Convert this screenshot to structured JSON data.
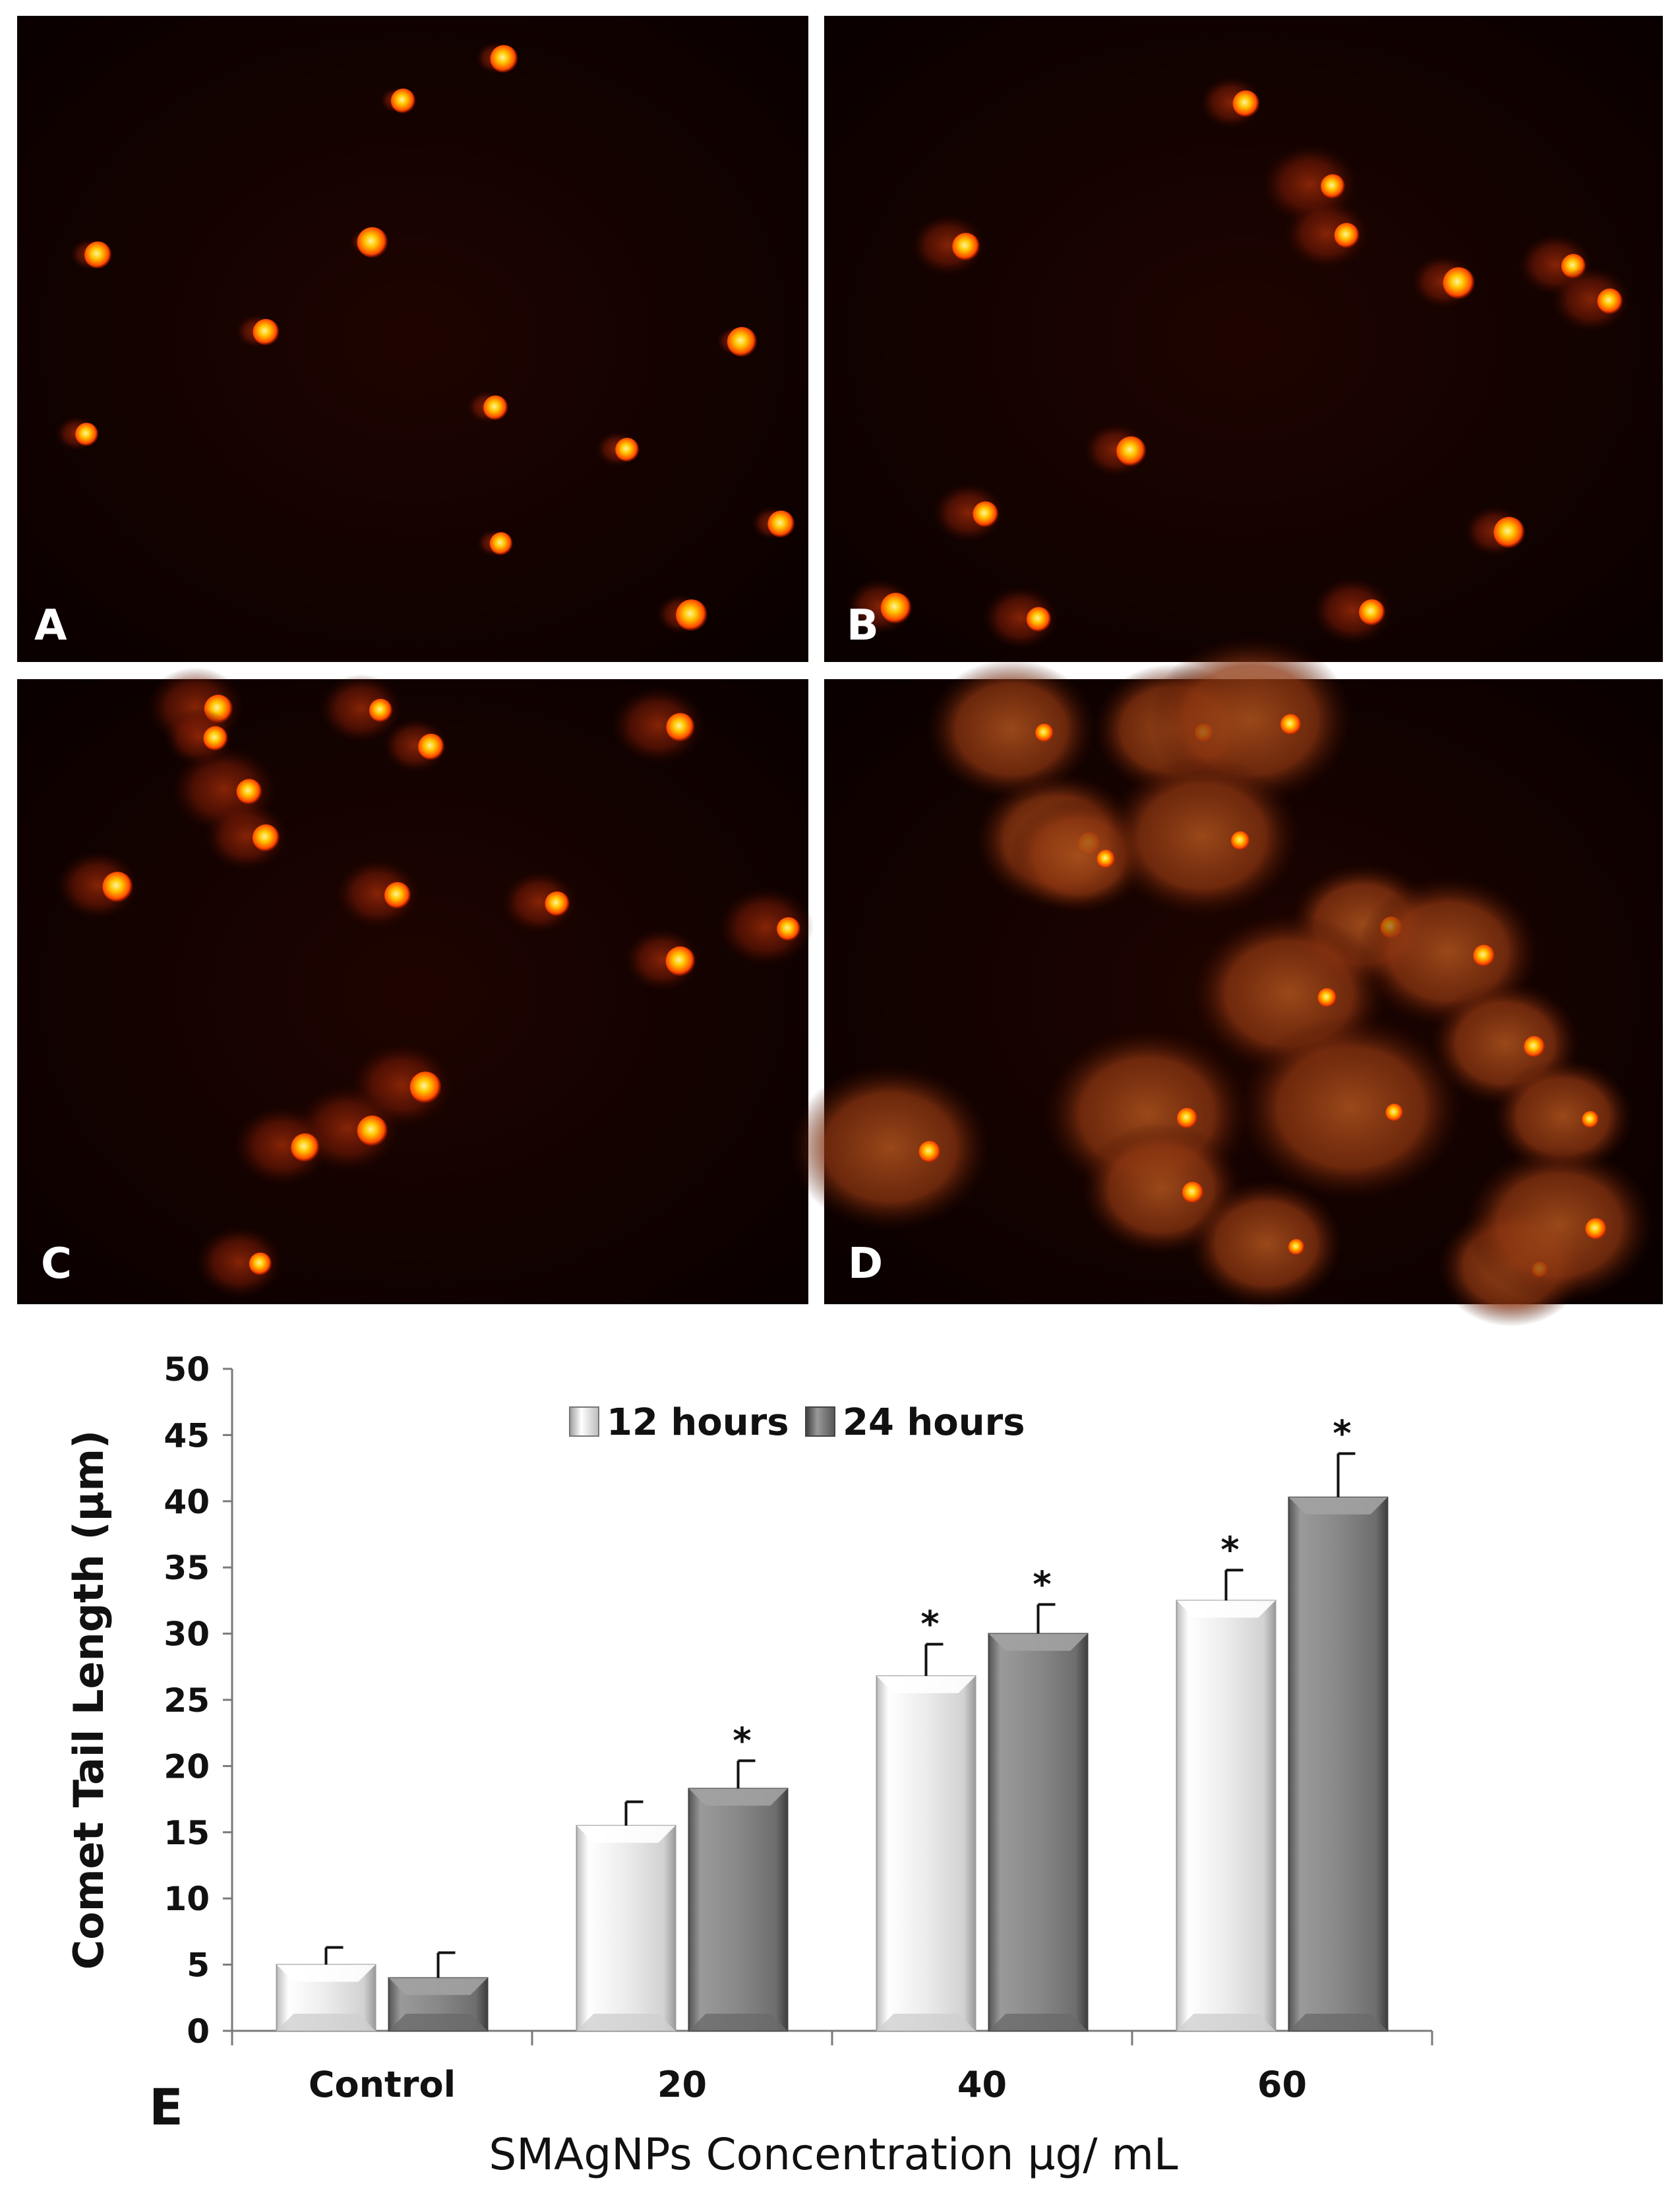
{
  "panels": [
    {
      "label": "A"
    },
    {
      "label": "B"
    },
    {
      "label": "C"
    },
    {
      "label": "D"
    }
  ],
  "colors": {
    "micrograph_bg": "#0d0100",
    "cell_halo": "#7a1a05",
    "nucleus_core": "#ffd000",
    "nucleus_edge": "#ff3a00",
    "series_12h": "#e6e6e6",
    "series_24h": "#8a8a8a"
  },
  "chart_data": {
    "type": "bar",
    "panel_label": "E",
    "categories": [
      "Control",
      "20",
      "40",
      "60"
    ],
    "series": [
      {
        "name": "12 hours",
        "values": [
          5.0,
          15.5,
          26.8,
          32.5
        ],
        "errors": [
          1.3,
          1.8,
          2.4,
          2.3
        ]
      },
      {
        "name": "24 hours",
        "values": [
          4.0,
          18.3,
          30.0,
          40.3
        ],
        "errors": [
          1.9,
          2.1,
          2.2,
          3.3
        ]
      }
    ],
    "significance": [
      [
        "",
        "",
        "*",
        "*"
      ],
      [
        "",
        "*",
        "*",
        "*"
      ]
    ],
    "significance_marker": "*",
    "xlabel": "SMAgNPs Concentration µg/ mL",
    "ylabel": "Comet Tail Length (µm)",
    "ylim": [
      0,
      50
    ],
    "yticks": [
      0,
      5,
      10,
      15,
      20,
      25,
      30,
      35,
      40,
      45,
      50
    ],
    "grid": false,
    "legend_position": "top-center"
  }
}
